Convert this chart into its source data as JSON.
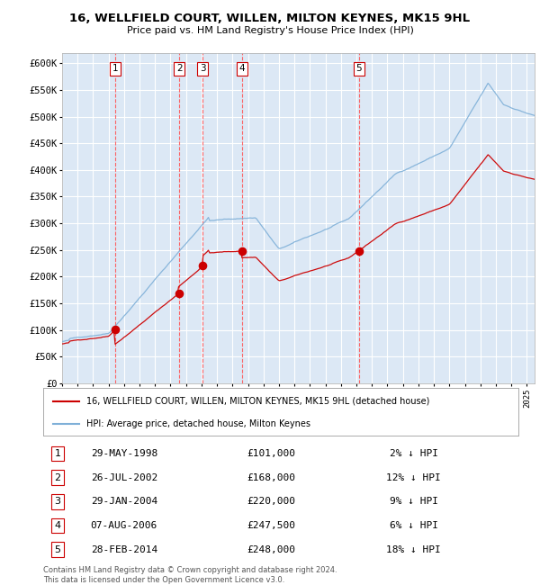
{
  "title": "16, WELLFIELD COURT, WILLEN, MILTON KEYNES, MK15 9HL",
  "subtitle": "Price paid vs. HM Land Registry's House Price Index (HPI)",
  "ylim": [
    0,
    620000
  ],
  "yticks": [
    0,
    50000,
    100000,
    150000,
    200000,
    250000,
    300000,
    350000,
    400000,
    450000,
    500000,
    550000,
    600000
  ],
  "ytick_labels": [
    "£0",
    "£50K",
    "£100K",
    "£150K",
    "£200K",
    "£250K",
    "£300K",
    "£350K",
    "£400K",
    "£450K",
    "£500K",
    "£550K",
    "£600K"
  ],
  "sale_dates_x": [
    1998.41,
    2002.56,
    2004.08,
    2006.6,
    2014.16
  ],
  "sale_prices_y": [
    101000,
    168000,
    220000,
    247500,
    248000
  ],
  "sale_labels": [
    "1",
    "2",
    "3",
    "4",
    "5"
  ],
  "vline_color": "#ff5555",
  "sale_marker_color": "#cc0000",
  "hpi_line_color": "#7fb0d8",
  "price_line_color": "#cc0000",
  "bg_color": "#dce8f5",
  "grid_color": "#ffffff",
  "legend_label_house": "16, WELLFIELD COURT, WILLEN, MILTON KEYNES, MK15 9HL (detached house)",
  "legend_label_hpi": "HPI: Average price, detached house, Milton Keynes",
  "table_data": [
    [
      "1",
      "29-MAY-1998",
      "£101,000",
      "2% ↓ HPI"
    ],
    [
      "2",
      "26-JUL-2002",
      "£168,000",
      "12% ↓ HPI"
    ],
    [
      "3",
      "29-JAN-2004",
      "£220,000",
      "9% ↓ HPI"
    ],
    [
      "4",
      "07-AUG-2006",
      "£247,500",
      "6% ↓ HPI"
    ],
    [
      "5",
      "28-FEB-2014",
      "£248,000",
      "18% ↓ HPI"
    ]
  ],
  "footnote": "Contains HM Land Registry data © Crown copyright and database right 2024.\nThis data is licensed under the Open Government Licence v3.0.",
  "xlim_start": 1995.0,
  "xlim_end": 2025.5
}
